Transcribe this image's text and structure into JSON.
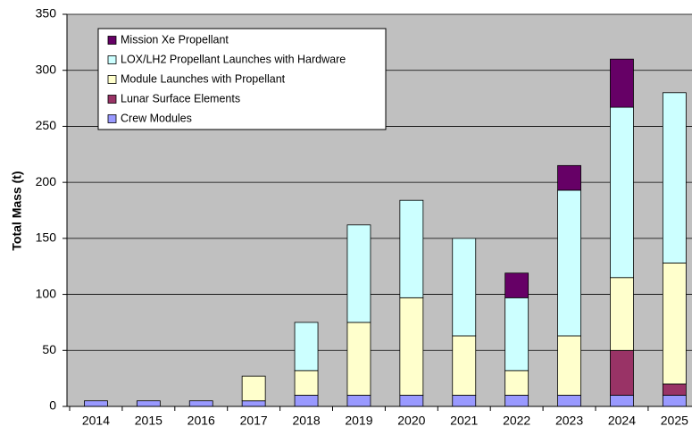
{
  "chart_data": {
    "type": "stacked_bar",
    "y_label": "Total Mass (t)",
    "categories": [
      "2014",
      "2015",
      "2016",
      "2017",
      "2018",
      "2019",
      "2020",
      "2021",
      "2022",
      "2023",
      "2024",
      "2025"
    ],
    "series": [
      {
        "name": "Crew Modules",
        "color": "#9999ff",
        "values": [
          5,
          5,
          5,
          5,
          10,
          10,
          10,
          10,
          10,
          10,
          10,
          10
        ]
      },
      {
        "name": "Lunar Surface Elements",
        "color": "#993366",
        "values": [
          0,
          0,
          0,
          0,
          0,
          0,
          0,
          0,
          0,
          0,
          40,
          10
        ]
      },
      {
        "name": "Module Launches with Propellant",
        "color": "#ffffcc",
        "values": [
          0,
          0,
          0,
          22,
          22,
          65,
          87,
          53,
          22,
          53,
          65,
          108
        ]
      },
      {
        "name": "LOX/LH2 Propellant Launches with Hardware",
        "color": "#ccffff",
        "values": [
          0,
          0,
          0,
          0,
          43,
          87,
          87,
          87,
          65,
          130,
          152,
          152
        ]
      },
      {
        "name": "Mission Xe Propellant",
        "color": "#660066",
        "values": [
          0,
          0,
          0,
          0,
          0,
          0,
          0,
          0,
          22,
          22,
          43,
          0
        ]
      }
    ],
    "ylim": [
      0,
      350
    ],
    "yticks": [
      0,
      50,
      100,
      150,
      200,
      250,
      300,
      350
    ],
    "grid": true,
    "legend": "upper-left"
  }
}
